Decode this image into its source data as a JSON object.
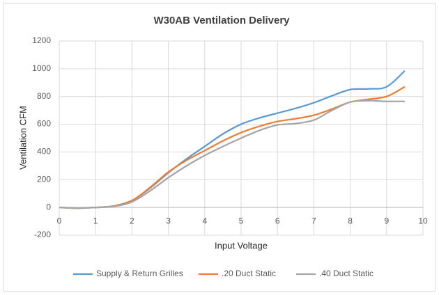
{
  "chart_data": {
    "type": "line",
    "title": "W30AB Ventilation Delivery",
    "x_label": "Input Voltage",
    "y_label": "Ventilation CFM",
    "x": [
      0,
      0.5,
      1,
      1.5,
      2,
      2.5,
      3,
      3.5,
      4,
      4.5,
      5,
      5.5,
      6,
      6.5,
      7,
      7.5,
      8,
      8.5,
      9,
      9.5
    ],
    "series": [
      {
        "name": "Supply & Return Grilles",
        "color": "#5b9bd5",
        "values": [
          0,
          -5,
          0,
          10,
          50,
          140,
          250,
          350,
          440,
          530,
          600,
          645,
          680,
          715,
          755,
          805,
          850,
          855,
          870,
          985
        ]
      },
      {
        "name": ".20 Duct Static",
        "color": "#ed7d31",
        "values": [
          0,
          -5,
          0,
          10,
          50,
          145,
          255,
          340,
          410,
          480,
          540,
          585,
          620,
          640,
          665,
          710,
          760,
          780,
          800,
          870
        ]
      },
      {
        "name": ".40 Duct Static",
        "color": "#a5a5a5",
        "values": [
          0,
          -5,
          0,
          8,
          40,
          120,
          215,
          300,
          375,
          440,
          500,
          555,
          595,
          605,
          630,
          700,
          760,
          770,
          765,
          765
        ]
      }
    ],
    "xlim": [
      0,
      10
    ],
    "xticks": [
      0,
      1,
      2,
      3,
      4,
      5,
      6,
      7,
      8,
      9,
      10
    ],
    "ylim": [
      -200,
      1200
    ],
    "yticks": [
      -200,
      0,
      200,
      400,
      600,
      800,
      1000,
      1200
    ],
    "grid": true,
    "legend": "bottom"
  }
}
